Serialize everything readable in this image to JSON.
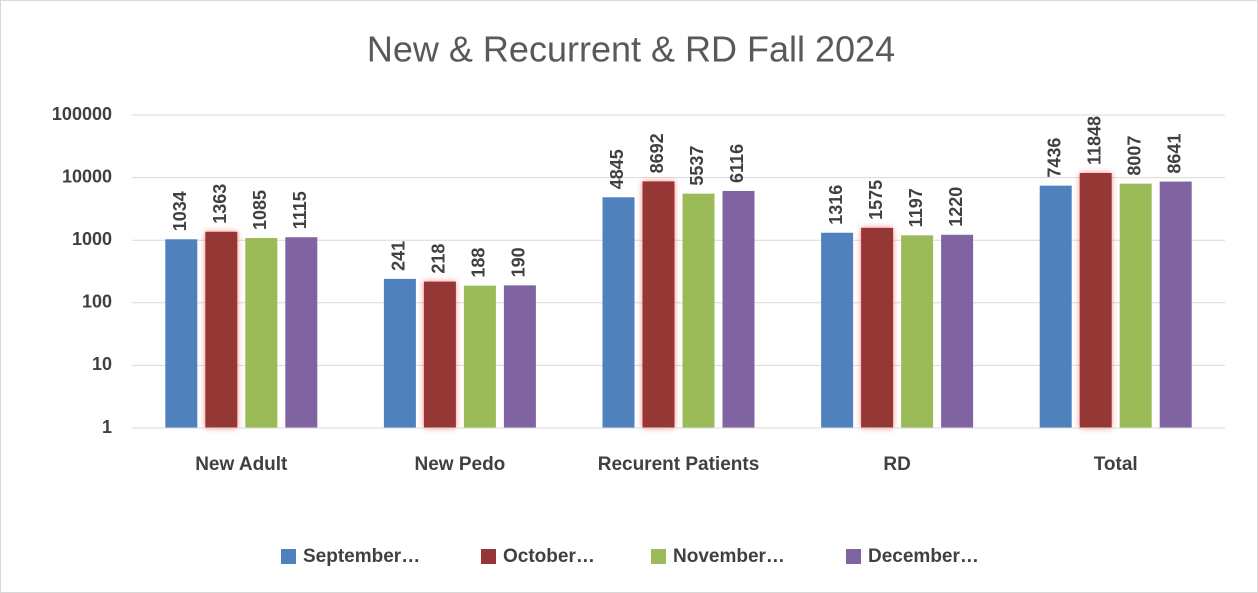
{
  "chart_data": {
    "type": "bar",
    "title": "New & Recurrent & RD Fall 2024",
    "categories": [
      "New Adult",
      "New Pedo",
      "Recurent Patients",
      "RD",
      "Total"
    ],
    "series": [
      {
        "name": "September…",
        "color": "#4f81bd",
        "values": [
          1034,
          241,
          4845,
          1316,
          7436
        ]
      },
      {
        "name": "October…",
        "color": "#953735",
        "highlight": true,
        "values": [
          1363,
          218,
          8692,
          1575,
          11848
        ]
      },
      {
        "name": "November…",
        "color": "#9bbb59",
        "values": [
          1085,
          188,
          5537,
          1197,
          8007
        ]
      },
      {
        "name": "December…",
        "color": "#8064a2",
        "values": [
          1115,
          190,
          6116,
          1220,
          8641
        ]
      }
    ],
    "log_scale": true,
    "ylim": [
      1,
      100000
    ],
    "yticks": [
      1,
      10,
      100,
      1000,
      10000,
      100000
    ],
    "grid": true,
    "legend": "bottom"
  }
}
